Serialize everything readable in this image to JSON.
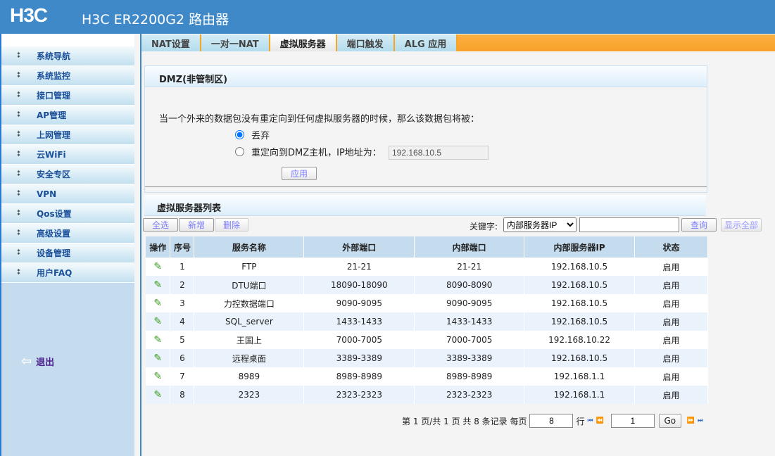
{
  "header": {
    "logo": "H3C",
    "title": "H3C ER2200G2 路由器"
  },
  "sidebar": {
    "items": [
      {
        "label": "系统导航"
      },
      {
        "label": "系统监控"
      },
      {
        "label": "接口管理"
      },
      {
        "label": "AP管理"
      },
      {
        "label": "上网管理"
      },
      {
        "label": "云WiFi"
      },
      {
        "label": "安全专区"
      },
      {
        "label": "VPN"
      },
      {
        "label": "Qos设置"
      },
      {
        "label": "高级设置"
      },
      {
        "label": "设备管理"
      },
      {
        "label": "用户FAQ"
      }
    ],
    "logout": "退出"
  },
  "tabs": [
    {
      "label": "NAT设置"
    },
    {
      "label": "一对一NAT"
    },
    {
      "label": "虚拟服务器",
      "active": true
    },
    {
      "label": "端口触发"
    },
    {
      "label": "ALG 应用"
    }
  ],
  "dmz": {
    "title": "DMZ(非管制区)",
    "desc": "当一个外来的数据包没有重定向到任何虚拟服务器的时候，那么该数据包将被：",
    "opt_drop": "丢弃",
    "opt_redirect": "重定向到DMZ主机，IP地址为：",
    "ip": "192.168.10.5",
    "selected": "drop",
    "apply": "应用"
  },
  "list": {
    "title": "虚拟服务器列表",
    "select_all": "全选",
    "add": "新增",
    "delete": "删除",
    "keyword_label": "关键字:",
    "keyword_select": "内部服务器IP",
    "keyword_value": "",
    "search": "查询",
    "show_all": "显示全部",
    "columns": [
      "操作",
      "序号",
      "服务名称",
      "外部端口",
      "内部端口",
      "内部服务器IP",
      "状态"
    ],
    "rows": [
      [
        "1",
        "FTP",
        "21-21",
        "21-21",
        "192.168.10.5",
        "启用"
      ],
      [
        "2",
        "DTU端口",
        "18090-18090",
        "8090-8090",
        "192.168.10.5",
        "启用"
      ],
      [
        "3",
        "力控数据端口",
        "9090-9095",
        "9090-9095",
        "192.168.10.5",
        "启用"
      ],
      [
        "4",
        "SQL_server",
        "1433-1433",
        "1433-1433",
        "192.168.10.5",
        "启用"
      ],
      [
        "5",
        "王国上",
        "7000-7005",
        "7000-7005",
        "192.168.10.22",
        "启用"
      ],
      [
        "6",
        "远程桌面",
        "3389-3389",
        "3389-3389",
        "192.168.10.5",
        "启用"
      ],
      [
        "7",
        "8989",
        "8989-8989",
        "8989-8989",
        "192.168.1.1",
        "启用"
      ],
      [
        "8",
        "2323",
        "2323-2323",
        "2323-2323",
        "192.168.1.1",
        "启用"
      ]
    ]
  },
  "pagination": {
    "summary": "第 1 页/共 1 页 共 8 条记录 每页",
    "per_page": "8",
    "rows_label": "行",
    "page": "1",
    "go": "Go"
  }
}
